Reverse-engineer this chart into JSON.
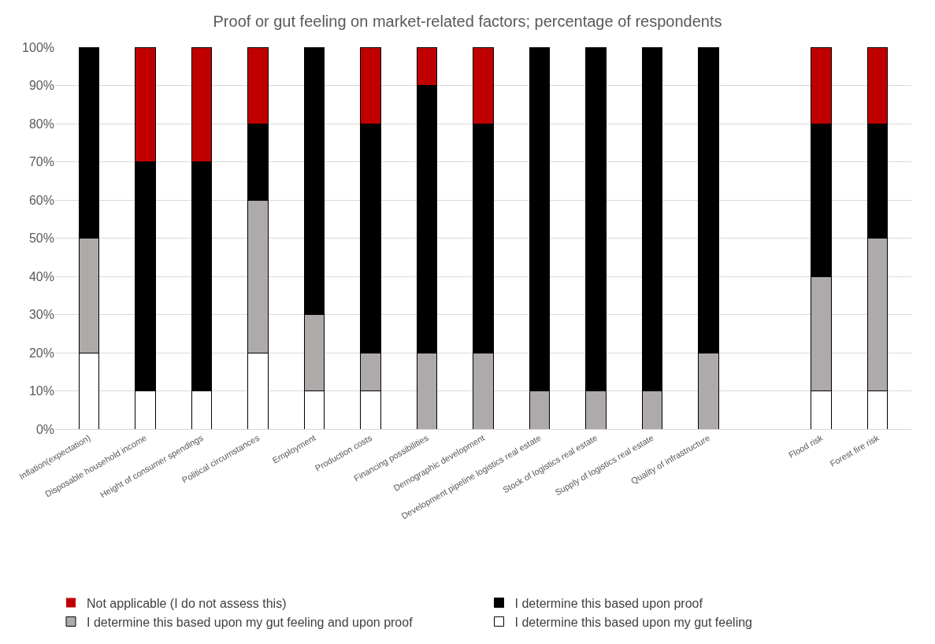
{
  "chart_data": {
    "type": "bar",
    "title": "Proof or gut feeling on market-related factors; percentage of respondents",
    "stacked": true,
    "categories": [
      "Inflation(expectation)",
      "Disposable household income",
      "Height of consumer spendings",
      "Political circumstances",
      "Employment",
      "Production costs",
      "Financing possibilities",
      "Demographic development",
      "Development pipeline logistics real estate",
      "Stock of logistics real estate",
      "Supply of logistics real estate",
      "Quality of infrastructure",
      null,
      "Flood risk",
      "Forest fire risk"
    ],
    "series": [
      {
        "name": "I determine this based upon my gut feeling",
        "color": "#ffffff",
        "values": [
          20,
          10,
          10,
          20,
          10,
          10,
          0,
          0,
          0,
          0,
          0,
          0,
          null,
          10,
          10
        ]
      },
      {
        "name": "I determine this based upon my gut feeling and upon proof",
        "color": "#aeaaaa",
        "values": [
          30,
          0,
          0,
          40,
          20,
          10,
          20,
          20,
          10,
          10,
          10,
          20,
          null,
          30,
          40
        ]
      },
      {
        "name": "I determine this based upon proof",
        "color": "#000000",
        "values": [
          50,
          60,
          60,
          20,
          70,
          60,
          70,
          60,
          90,
          90,
          90,
          80,
          null,
          40,
          30
        ]
      },
      {
        "name": "Not applicable (I do not assess this)",
        "color": "#c00000",
        "values": [
          0,
          30,
          30,
          20,
          0,
          20,
          10,
          20,
          0,
          0,
          0,
          0,
          null,
          20,
          20
        ]
      }
    ],
    "ylim": [
      0,
      100
    ],
    "yticks": [
      {
        "value": 0,
        "label": "0%"
      },
      {
        "value": 10,
        "label": "10%"
      },
      {
        "value": 20,
        "label": "20%"
      },
      {
        "value": 30,
        "label": "30%"
      },
      {
        "value": 40,
        "label": "40%"
      },
      {
        "value": 50,
        "label": "50%"
      },
      {
        "value": 60,
        "label": "60%"
      },
      {
        "value": 70,
        "label": "70%"
      },
      {
        "value": 80,
        "label": "80%"
      },
      {
        "value": 90,
        "label": "90%"
      },
      {
        "value": 100,
        "label": "100%"
      }
    ],
    "grid": "y",
    "legend": "bottom"
  }
}
